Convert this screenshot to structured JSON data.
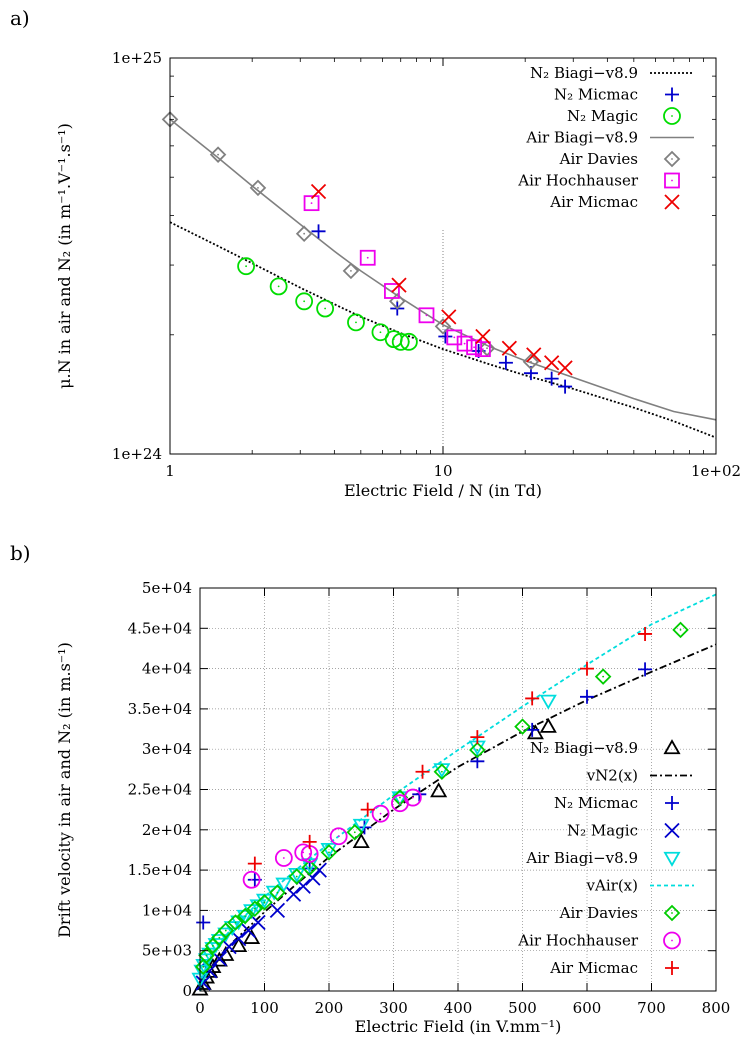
{
  "panels": [
    {
      "tag": "a)",
      "chart_data": {
        "type": "scatter",
        "xscale": "log",
        "yscale": "log",
        "xlim": [
          1,
          100
        ],
        "ylim": [
          1e+24,
          1e+25
        ],
        "xticks": [
          1,
          10,
          100
        ],
        "xtick_labels": [
          "1",
          "10",
          "1e+02"
        ],
        "yticks": [
          1e+24,
          1e+25
        ],
        "ytick_labels": [
          "1e+24",
          "1e+25"
        ],
        "xlabel": "Electric Field / N (in Td)",
        "ylabel": "μ.N in air and N₂ (in m⁻¹.V⁻¹.s⁻¹)",
        "grid": "dotted vertical line at x = 10",
        "legend": "top-right",
        "series": [
          {
            "name": "N₂ Biagi−v8.9",
            "kind": "line",
            "style": "dotted",
            "color": "#000000",
            "x": [
              1,
              1.5,
              2,
              3,
              4,
              5,
              7,
              10,
              15,
              20,
              30,
              50,
              70,
              100
            ],
            "y": [
              3.85e+24,
              3.35e+24,
              3.03e+24,
              2.63e+24,
              2.39e+24,
              2.22e+24,
              2.02e+24,
              1.84e+24,
              1.68e+24,
              1.58e+24,
              1.46e+24,
              1.31e+24,
              1.21e+24,
              1.1e+24
            ]
          },
          {
            "name": "N₂ Micmac",
            "kind": "points",
            "marker": "plus",
            "color": "#0000cc",
            "x": [
              3.5,
              6.8,
              10.2,
              13.5,
              17,
              21,
              25,
              28
            ],
            "y": [
              3.65e+24,
              2.33e+24,
              1.98e+24,
              1.82e+24,
              1.7e+24,
              1.6e+24,
              1.55e+24,
              1.48e+24
            ]
          },
          {
            "name": "N₂ Magic",
            "kind": "points",
            "marker": "circle",
            "color": "#00dd00",
            "x": [
              1.9,
              2.5,
              3.1,
              3.7,
              4.8,
              5.9,
              6.6,
              7.0,
              7.5
            ],
            "y": [
              2.98e+24,
              2.65e+24,
              2.43e+24,
              2.33e+24,
              2.15e+24,
              2.03e+24,
              1.95e+24,
              1.92e+24,
              1.92e+24
            ]
          },
          {
            "name": "Air Biagi−v8.9",
            "kind": "line",
            "style": "solid",
            "color": "#808080",
            "x": [
              1,
              1.5,
              2,
              3,
              4,
              5,
              7,
              10,
              15,
              20,
              30,
              50,
              70,
              100
            ],
            "y": [
              7e+24,
              5.6e+24,
              4.75e+24,
              3.8e+24,
              3.25e+24,
              2.9e+24,
              2.48e+24,
              2.12e+24,
              1.86e+24,
              1.72e+24,
              1.56e+24,
              1.38e+24,
              1.28e+24,
              1.22e+24
            ]
          },
          {
            "name": "Air Davies",
            "kind": "points",
            "marker": "diamond",
            "color": "#808080",
            "x": [
              1,
              1.5,
              2.1,
              3.1,
              4.6,
              6.8,
              10,
              14.5,
              21
            ],
            "y": [
              7e+24,
              5.7e+24,
              4.7e+24,
              3.6e+24,
              2.9e+24,
              2.43e+24,
              2.1e+24,
              1.85e+24,
              1.71e+24
            ]
          },
          {
            "name": "Air Hochhauser",
            "kind": "points",
            "marker": "square",
            "color": "#ee00ee",
            "x": [
              3.3,
              5.3,
              6.5,
              8.7,
              11,
              12,
              13,
              14
            ],
            "y": [
              4.3e+24,
              3.13e+24,
              2.58e+24,
              2.24e+24,
              1.97e+24,
              1.9e+24,
              1.86e+24,
              1.84e+24
            ]
          },
          {
            "name": "Air Micmac",
            "kind": "points",
            "marker": "x",
            "color": "#ee0000",
            "x": [
              3.5,
              6.9,
              10.5,
              14,
              17.5,
              21.5,
              25,
              28
            ],
            "y": [
              4.6e+24,
              2.67e+24,
              2.22e+24,
              1.98e+24,
              1.85e+24,
              1.78e+24,
              1.7e+24,
              1.65e+24
            ]
          }
        ]
      }
    },
    {
      "tag": "b)",
      "chart_data": {
        "type": "scatter",
        "xlim": [
          0,
          800
        ],
        "ylim": [
          0,
          50000
        ],
        "xticks": [
          0,
          100,
          200,
          300,
          400,
          500,
          600,
          700,
          800
        ],
        "xtick_labels": [
          "0",
          "100",
          "200",
          "300",
          "400",
          "500",
          "600",
          "700",
          "800"
        ],
        "yticks": [
          0,
          5000,
          10000,
          15000,
          20000,
          25000,
          30000,
          35000,
          40000,
          45000,
          50000
        ],
        "ytick_labels": [
          "0",
          "5e+03",
          "1e+04",
          "1.5e+04",
          "2e+04",
          "2.5e+04",
          "3e+04",
          "3.5e+04",
          "4e+04",
          "4.5e+04",
          "5e+04"
        ],
        "xlabel": "Electric Field (in V.mm⁻¹)",
        "ylabel": "Drift velocity in air and N₂ (in m.s⁻¹)",
        "grid": "on (dotted)",
        "legend": "bottom-right",
        "series": [
          {
            "name": "N₂ Biagi−v8.9",
            "kind": "points",
            "marker": "triangle-up",
            "color": "#000000",
            "x": [
              0,
              5,
              10,
              15,
              20,
              30,
              40,
              60,
              80,
              250,
              370,
              520,
              540
            ],
            "y": [
              200,
              900,
              1700,
              2400,
              3000,
              3800,
              4500,
              5600,
              6600,
              18500,
              24800,
              32000,
              32800
            ]
          },
          {
            "name": "vN2(x)",
            "kind": "line",
            "style": "dashdot",
            "color": "#000000",
            "x": [
              0,
              10,
              25,
              50,
              100,
              150,
              200,
              300,
              400,
              500,
              600,
              700,
              800
            ],
            "y": [
              0,
              1800,
              3500,
              6000,
              9800,
              13300,
              16600,
              22500,
              27800,
              32200,
              36100,
              39600,
              43000
            ]
          },
          {
            "name": "N₂ Micmac",
            "kind": "points",
            "marker": "plus",
            "color": "#0000cc",
            "x": [
              5,
              85,
              170,
              255,
              340,
              430,
              515,
              600,
              690
            ],
            "y": [
              8500,
              13800,
              15200,
              20300,
              24400,
              28500,
              32400,
              36500,
              39900
            ]
          },
          {
            "name": "N₂ Magic",
            "kind": "points",
            "marker": "x",
            "color": "#0000cc",
            "x": [
              5,
              15,
              30,
              45,
              60,
              75,
              90,
              120,
              145,
              160,
              175,
              185
            ],
            "y": [
              1000,
              2500,
              4000,
              5500,
              6500,
              7500,
              8500,
              10000,
              12000,
              13000,
              14000,
              15000
            ]
          },
          {
            "name": "Air Biagi−v8.9",
            "kind": "points",
            "marker": "triangle-down",
            "color": "#00dddd",
            "x": [
              0,
              3,
              6,
              10,
              15,
              20,
              25,
              30,
              40,
              50,
              60,
              70,
              80,
              90,
              100,
              115,
              130,
              150,
              170,
              200,
              250,
              310,
              375,
              430,
              540
            ],
            "y": [
              1500,
              2500,
              3200,
              3900,
              4600,
              5300,
              5800,
              6300,
              7100,
              7900,
              8600,
              9300,
              10000,
              10600,
              11300,
              12300,
              13300,
              14500,
              15700,
              17600,
              20600,
              24000,
              27500,
              30300,
              36000
            ]
          },
          {
            "name": "vAir(x)",
            "kind": "line",
            "style": "dashed",
            "color": "#00dddd",
            "x": [
              0,
              10,
              25,
              50,
              100,
              150,
              200,
              300,
              400,
              500,
              600,
              700,
              800
            ],
            "y": [
              0,
              3300,
              5500,
              7800,
              11700,
              15100,
              18300,
              24300,
              29900,
              35300,
              40500,
              45500,
              49200
            ]
          },
          {
            "name": "Air Davies",
            "kind": "points",
            "marker": "diamond",
            "color": "#00cc00",
            "x": [
              5,
              10,
              20,
              30,
              40,
              55,
              70,
              85,
              100,
              120,
              150,
              170,
              200,
              240,
              310,
              375,
              430,
              500,
              625,
              745
            ],
            "y": [
              3000,
              4400,
              5600,
              6600,
              7500,
              8500,
              9300,
              10200,
              11000,
              12200,
              14200,
              15300,
              17200,
              19700,
              24000,
              27200,
              29900,
              32800,
              39000,
              44800
            ]
          },
          {
            "name": "Air Hochhauser",
            "kind": "points",
            "marker": "circle",
            "color": "#ee00ee",
            "x": [
              80,
              130,
              160,
              170,
              215,
              280,
              310,
              330
            ],
            "y": [
              13800,
              16500,
              17200,
              17000,
              19200,
              22000,
              23300,
              24000
            ]
          },
          {
            "name": "Air Micmac",
            "kind": "points",
            "marker": "plus",
            "color": "#ee0000",
            "x": [
              85,
              170,
              260,
              345,
              430,
              515,
              600,
              690
            ],
            "y": [
              15800,
              18500,
              22500,
              27200,
              31500,
              36300,
              40000,
              44300
            ]
          }
        ]
      }
    }
  ]
}
